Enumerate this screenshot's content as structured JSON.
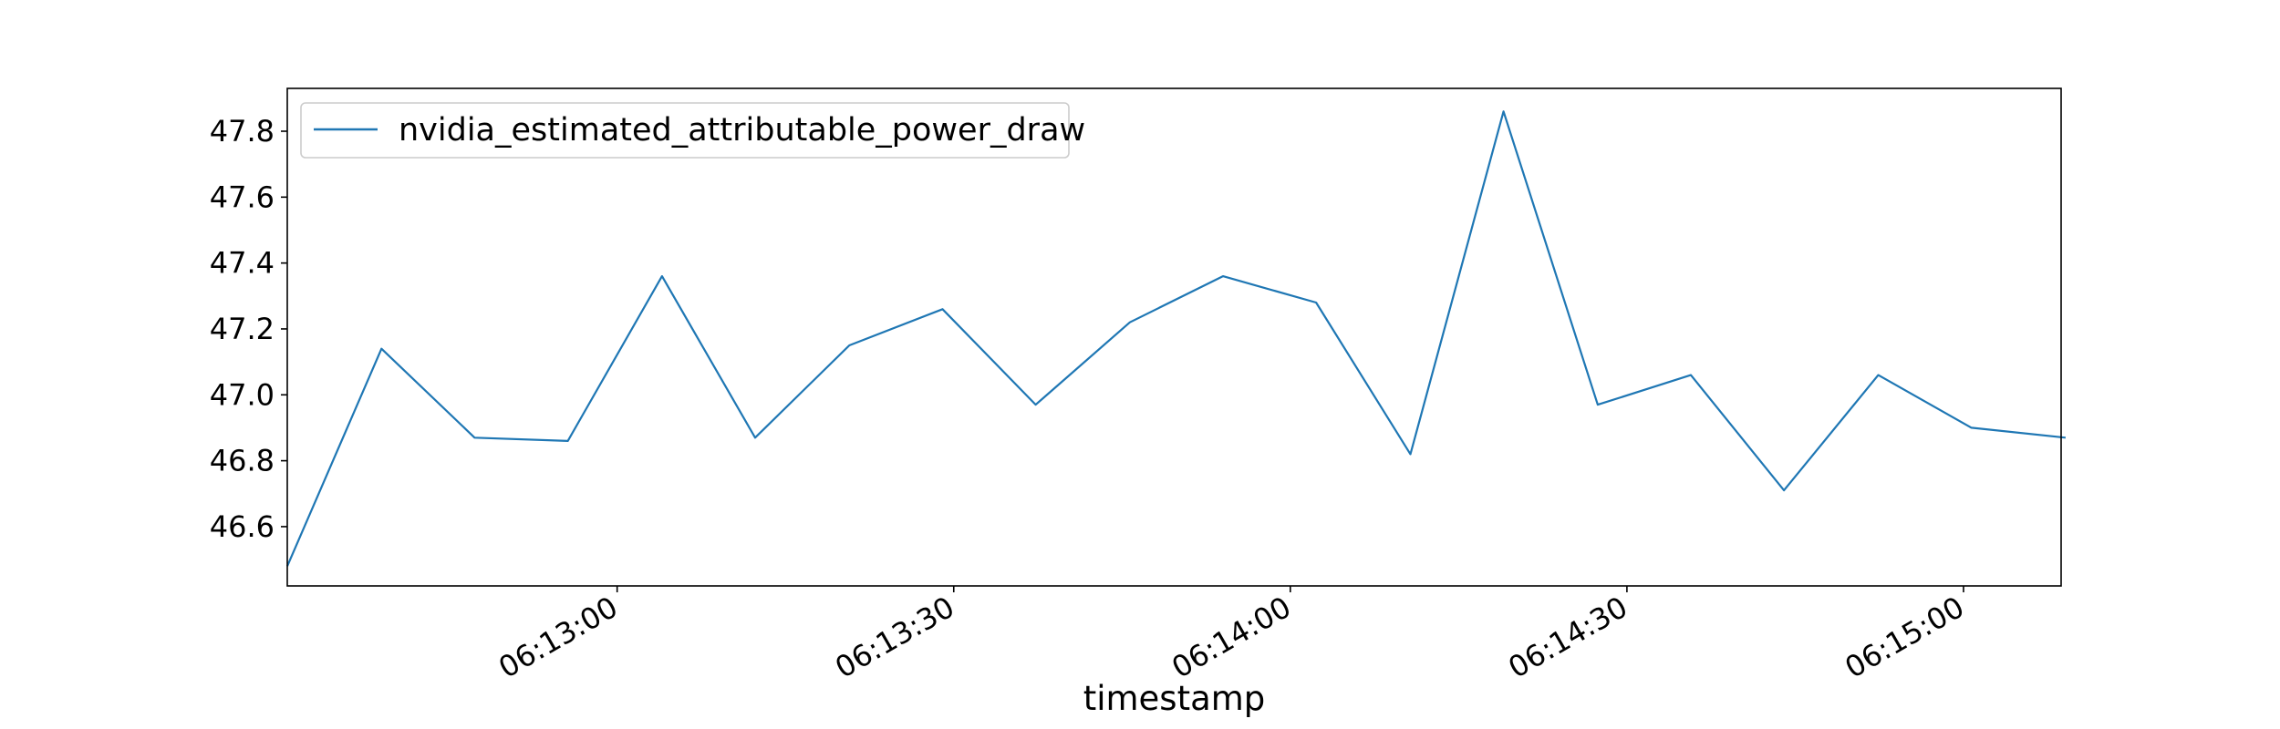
{
  "chart_data": {
    "type": "line",
    "title": "",
    "xlabel": "timestamp",
    "ylabel": "",
    "x_tick_labels": [
      "06:13:00",
      "06:13:30",
      "06:14:00",
      "06:14:30",
      "06:15:00"
    ],
    "x_ticks_seconds": [
      780,
      810,
      840,
      870,
      900
    ],
    "xlim_seconds": [
      750.6,
      908.7
    ],
    "y_tick_labels": [
      "46.6",
      "46.8",
      "47.0",
      "47.2",
      "47.4",
      "47.6",
      "47.8"
    ],
    "y_ticks": [
      46.6,
      46.8,
      47.0,
      47.2,
      47.4,
      47.6,
      47.8
    ],
    "ylim": [
      46.42,
      47.93
    ],
    "grid": false,
    "legend": {
      "position": "upper-left"
    },
    "series": [
      {
        "name": "nvidia_estimated_attributable_power_draw",
        "color": "#1f77b4",
        "x_seconds": [
          750.6,
          759.0,
          767.3,
          775.6,
          784.0,
          792.3,
          800.7,
          809.0,
          817.3,
          825.7,
          834.0,
          842.3,
          850.7,
          859.0,
          867.4,
          875.7,
          884.0,
          892.4,
          900.7,
          909.1
        ],
        "values": [
          46.48,
          47.14,
          46.87,
          46.86,
          47.36,
          46.87,
          47.15,
          47.26,
          46.97,
          47.22,
          47.36,
          47.28,
          46.82,
          47.86,
          46.97,
          47.06,
          46.71,
          47.06,
          46.9,
          46.87
        ]
      }
    ]
  }
}
